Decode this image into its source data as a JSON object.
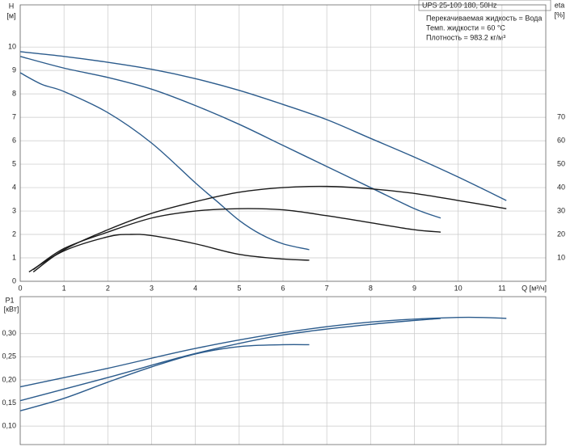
{
  "chart_data": [
    {
      "type": "line",
      "title": "UPS 25-100  180, 50Hz",
      "annotations": [
        "Перекачиваемая жидкость = Вода",
        "Темп. жидкости = 60 °C",
        "Плотность = 983.2 кг/м³"
      ],
      "y_label": "H",
      "y_unit": "[м]",
      "y2_label": "eta",
      "y2_unit": "[%]",
      "x_label": "Q [м³/ч]",
      "xlim": [
        0,
        12
      ],
      "xticks": [
        0,
        1,
        2,
        3,
        4,
        5,
        6,
        7,
        8,
        9,
        10,
        11
      ],
      "ylim": [
        0,
        11.8
      ],
      "yticks": [
        0,
        1,
        2,
        3,
        4,
        5,
        6,
        7,
        8,
        9,
        10
      ],
      "y2lim": [
        0,
        118
      ],
      "y2ticks": [
        10,
        20,
        30,
        40,
        50,
        60,
        70
      ],
      "grid": true,
      "series": [
        {
          "color": "#2b5b8c",
          "x": [
            0,
            1,
            2,
            3,
            4,
            5,
            6,
            7,
            8,
            9,
            10,
            11.1
          ],
          "values": [
            9.8,
            9.6,
            9.35,
            9.05,
            8.65,
            8.15,
            7.55,
            6.9,
            6.1,
            5.3,
            4.45,
            3.45
          ]
        },
        {
          "color": "#2b5b8c",
          "x": [
            0,
            1,
            2,
            3,
            4,
            5,
            6,
            7,
            8,
            9,
            9.6
          ],
          "values": [
            9.6,
            9.1,
            8.7,
            8.2,
            7.5,
            6.7,
            5.8,
            4.9,
            4.0,
            3.1,
            2.7
          ]
        },
        {
          "color": "#2b5b8c",
          "x": [
            0,
            0.5,
            1,
            2,
            3,
            4,
            4.5,
            5,
            5.5,
            6,
            6.6
          ],
          "values": [
            8.9,
            8.4,
            8.1,
            7.2,
            5.9,
            4.2,
            3.4,
            2.6,
            2.0,
            1.6,
            1.35
          ]
        },
        {
          "color": "#1a1a1a",
          "axis": "y2",
          "x": [
            0.3,
            1,
            2,
            3,
            4,
            5,
            6,
            7,
            8,
            9,
            10,
            11.1
          ],
          "values": [
            4,
            13.5,
            22,
            29,
            34,
            38,
            40,
            40.5,
            39.5,
            37.5,
            34.5,
            31
          ]
        },
        {
          "color": "#1a1a1a",
          "axis": "y2",
          "x": [
            0.3,
            1,
            2,
            3,
            4,
            5,
            6,
            7,
            8,
            9,
            9.6
          ],
          "values": [
            5,
            14,
            21,
            27,
            30,
            31,
            30.5,
            28,
            25,
            22,
            21
          ]
        },
        {
          "color": "#1a1a1a",
          "axis": "y2",
          "x": [
            0.2,
            1,
            2,
            2.5,
            3,
            4,
            5,
            6,
            6.6
          ],
          "values": [
            4,
            13,
            19,
            20,
            19.5,
            16,
            11.5,
            9.5,
            9
          ]
        }
      ]
    },
    {
      "type": "line",
      "y_label": "P1",
      "y_unit": "[кВт]",
      "xlim": [
        0,
        12
      ],
      "xticks": [
        0,
        1,
        2,
        3,
        4,
        5,
        6,
        7,
        8,
        9,
        10,
        11
      ],
      "ylim": [
        0.06,
        0.38
      ],
      "yticks": [
        {
          "value": 0.1,
          "label": "0,10"
        },
        {
          "value": 0.15,
          "label": "0,15"
        },
        {
          "value": 0.2,
          "label": "0,20"
        },
        {
          "value": 0.25,
          "label": "0,25"
        },
        {
          "value": 0.3,
          "label": "0,30"
        }
      ],
      "grid": true,
      "series": [
        {
          "color": "#2b5b8c",
          "x": [
            0,
            2,
            4,
            6,
            8,
            10,
            11.1
          ],
          "values": [
            0.185,
            0.225,
            0.268,
            0.302,
            0.325,
            0.335,
            0.333
          ]
        },
        {
          "color": "#2b5b8c",
          "x": [
            0,
            2,
            4,
            6,
            8,
            9.6
          ],
          "values": [
            0.155,
            0.205,
            0.257,
            0.297,
            0.32,
            0.333
          ]
        },
        {
          "color": "#2b5b8c",
          "x": [
            0,
            1,
            2,
            3,
            4,
            5,
            6,
            6.6
          ],
          "values": [
            0.133,
            0.16,
            0.195,
            0.228,
            0.256,
            0.272,
            0.276,
            0.276
          ]
        }
      ]
    }
  ]
}
